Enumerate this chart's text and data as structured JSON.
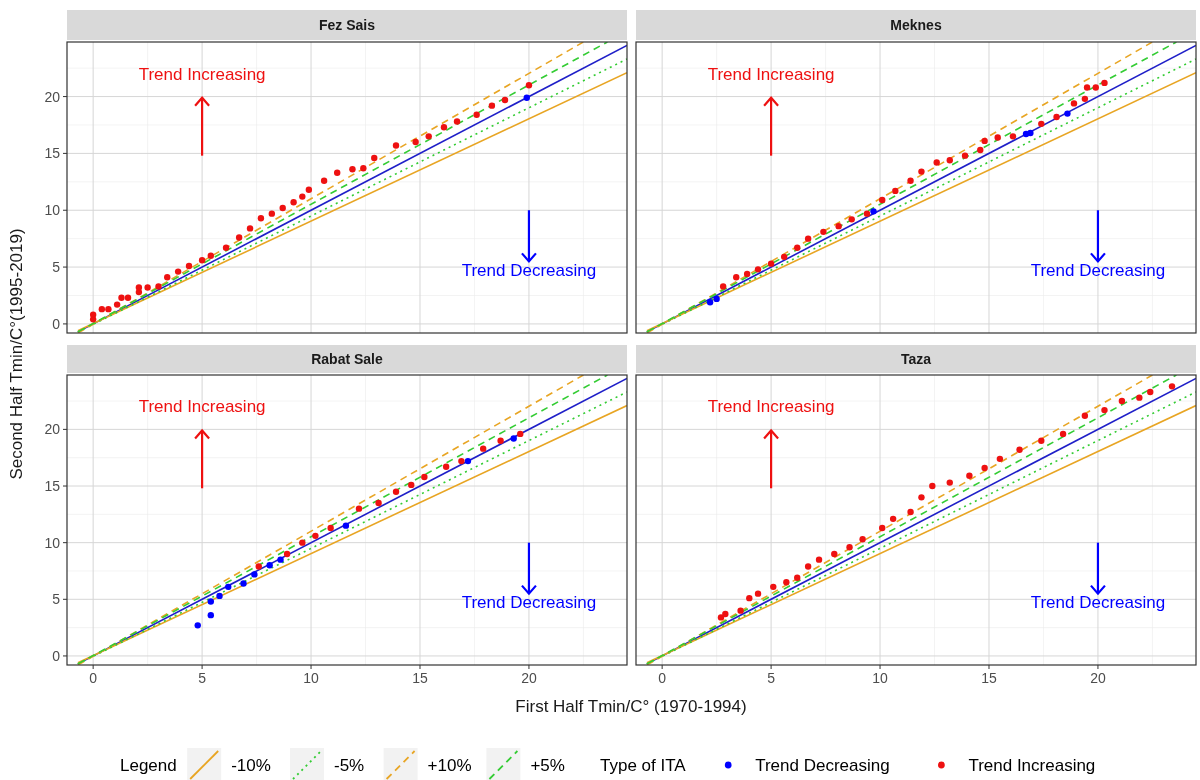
{
  "chart_data": [
    {
      "type": "scatter",
      "title": "Fez Sais",
      "xlabel": "First Half Tmin/C° (1970-1994)",
      "ylabel": "Second Half Tmin/C°(1995-2019)",
      "legend_title": "Legend",
      "legend": "bottom",
      "grid": true,
      "tick_labels": "y",
      "xlim": [
        -1.2,
        24.5
      ],
      "ylim": [
        -0.8,
        24.8
      ],
      "xticks": [
        0,
        5,
        10,
        15,
        20
      ],
      "yticks": [
        0,
        5,
        10,
        15,
        20
      ],
      "annotations": [
        "Trend Increasing",
        "Trend Decreasing",
        "Type of ITA"
      ],
      "series": [
        {
          "type": "line",
          "color": "#1f1fc8",
          "line_style": "solid",
          "x": [
            -0.7,
            24.5
          ],
          "values": [
            -0.7,
            24.5
          ]
        },
        {
          "type": "line",
          "name": "-10%",
          "color": "#e8a523",
          "line_style": "solid",
          "x": [
            -0.7,
            24.5
          ],
          "values": [
            -0.6,
            22.1
          ]
        },
        {
          "type": "line",
          "name": "-5%",
          "color": "#33cc33",
          "line_style": "dotted",
          "x": [
            -0.7,
            24.5
          ],
          "values": [
            -0.7,
            23.3
          ]
        },
        {
          "type": "line",
          "name": "+10%",
          "color": "#e8a523",
          "line_style": "dashed",
          "x": [
            -0.7,
            22.5
          ],
          "values": [
            -0.8,
            24.8
          ]
        },
        {
          "type": "line",
          "name": "+5%",
          "color": "#33cc33",
          "line_style": "dashed",
          "x": [
            -0.7,
            23.6
          ],
          "values": [
            -0.7,
            24.8
          ]
        },
        {
          "type": "scatter",
          "name": "Trend Decreasing",
          "color": "#0000ff",
          "marker": "circle",
          "x": [
            19.9
          ],
          "values": [
            19.9
          ]
        },
        {
          "type": "scatter",
          "name": "Trend Increasing",
          "color": "#ee1111",
          "marker": "circle",
          "x": [
            0,
            0,
            0.4,
            0.7,
            1.1,
            1.3,
            1.6,
            2.1,
            2.1,
            2.5,
            3.0,
            3.4,
            3.9,
            4.4,
            5.0,
            5.4,
            6.1,
            6.7,
            7.2,
            7.7,
            8.2,
            8.7,
            9.2,
            9.6,
            9.9,
            10.6,
            11.2,
            11.9,
            12.4,
            12.9,
            13.9,
            14.8,
            15.4,
            16.1,
            16.7,
            17.6,
            18.3,
            18.9,
            20.0
          ],
          "values": [
            0.4,
            0.8,
            1.3,
            1.3,
            1.7,
            2.3,
            2.3,
            2.8,
            3.2,
            3.2,
            3.3,
            4.1,
            4.6,
            5.1,
            5.6,
            6.0,
            6.7,
            7.6,
            8.4,
            9.3,
            9.7,
            10.2,
            10.7,
            11.2,
            11.8,
            12.6,
            13.3,
            13.6,
            13.7,
            14.6,
            15.7,
            16.0,
            16.5,
            17.3,
            17.8,
            18.4,
            19.2,
            19.7,
            21.0
          ]
        }
      ]
    },
    {
      "type": "scatter",
      "title": "Meknes",
      "grid": true,
      "tick_labels": false,
      "xlim": [
        -1.2,
        24.5
      ],
      "ylim": [
        -0.8,
        24.8
      ],
      "xticks": [
        0,
        5,
        10,
        15,
        20
      ],
      "yticks": [
        0,
        5,
        10,
        15,
        20
      ],
      "annotations": [
        "Trend Increasing",
        "Trend Decreasing"
      ],
      "series": [
        {
          "type": "line",
          "color": "#1f1fc8",
          "line_style": "solid",
          "x": [
            -0.7,
            24.5
          ],
          "values": [
            -0.7,
            24.5
          ]
        },
        {
          "type": "line",
          "color": "#e8a523",
          "line_style": "solid",
          "x": [
            -0.7,
            24.5
          ],
          "values": [
            -0.6,
            22.1
          ]
        },
        {
          "type": "line",
          "color": "#33cc33",
          "line_style": "dotted",
          "x": [
            -0.7,
            24.5
          ],
          "values": [
            -0.7,
            23.3
          ]
        },
        {
          "type": "line",
          "color": "#e8a523",
          "line_style": "dashed",
          "x": [
            -0.7,
            22.5
          ],
          "values": [
            -0.8,
            24.8
          ]
        },
        {
          "type": "line",
          "color": "#33cc33",
          "line_style": "dashed",
          "x": [
            -0.7,
            23.6
          ],
          "values": [
            -0.7,
            24.8
          ]
        },
        {
          "type": "scatter",
          "color": "#0000ff",
          "marker": "circle",
          "x": [
            2.2,
            2.5,
            9.7,
            16.7,
            16.9,
            18.6
          ],
          "values": [
            1.9,
            2.2,
            9.9,
            16.7,
            16.8,
            18.5
          ]
        },
        {
          "type": "scatter",
          "color": "#ee1111",
          "marker": "circle",
          "x": [
            2.8,
            3.4,
            3.9,
            4.4,
            5.0,
            5.6,
            6.2,
            6.7,
            7.4,
            8.1,
            8.7,
            9.4,
            10.1,
            10.7,
            11.4,
            11.9,
            12.6,
            13.2,
            13.9,
            14.6,
            14.8,
            15.4,
            16.1,
            17.4,
            18.1,
            18.9,
            19.4,
            19.5,
            19.9,
            20.3
          ],
          "values": [
            3.3,
            4.1,
            4.4,
            4.8,
            5.3,
            5.9,
            6.7,
            7.5,
            8.1,
            8.6,
            9.2,
            9.7,
            10.9,
            11.7,
            12.6,
            13.4,
            14.2,
            14.4,
            14.8,
            15.3,
            16.1,
            16.4,
            16.5,
            17.6,
            18.2,
            19.4,
            19.8,
            20.8,
            20.8,
            21.2
          ]
        }
      ]
    },
    {
      "type": "scatter",
      "title": "Rabat Sale",
      "grid": true,
      "xlim": [
        -1.2,
        24.5
      ],
      "ylim": [
        -0.8,
        24.8
      ],
      "xticks": [
        0,
        5,
        10,
        15,
        20
      ],
      "yticks": [
        0,
        5,
        10,
        15,
        20
      ],
      "annotations": [
        "Trend Increasing",
        "Trend Decreasing"
      ],
      "series": [
        {
          "type": "line",
          "color": "#1f1fc8",
          "line_style": "solid",
          "x": [
            -0.7,
            24.5
          ],
          "values": [
            -0.7,
            24.5
          ]
        },
        {
          "type": "line",
          "color": "#e8a523",
          "line_style": "solid",
          "x": [
            -0.7,
            24.5
          ],
          "values": [
            -0.6,
            22.1
          ]
        },
        {
          "type": "line",
          "color": "#33cc33",
          "line_style": "dotted",
          "x": [
            -0.7,
            24.5
          ],
          "values": [
            -0.7,
            23.3
          ]
        },
        {
          "type": "line",
          "color": "#e8a523",
          "line_style": "dashed",
          "x": [
            -0.7,
            22.5
          ],
          "values": [
            -0.8,
            24.8
          ]
        },
        {
          "type": "line",
          "color": "#33cc33",
          "line_style": "dashed",
          "x": [
            -0.7,
            23.6
          ],
          "values": [
            -0.7,
            24.8
          ]
        },
        {
          "type": "scatter",
          "color": "#0000ff",
          "marker": "circle",
          "x": [
            4.8,
            5.4,
            5.4,
            5.8,
            6.2,
            6.9,
            7.4,
            8.1,
            8.6,
            11.6,
            17.2,
            19.3
          ],
          "values": [
            2.7,
            3.6,
            4.8,
            5.3,
            6.1,
            6.4,
            7.2,
            8.0,
            8.5,
            11.5,
            17.2,
            19.2
          ]
        },
        {
          "type": "scatter",
          "color": "#ee1111",
          "marker": "circle",
          "x": [
            7.6,
            8.9,
            9.6,
            10.2,
            10.9,
            12.2,
            13.1,
            13.9,
            14.6,
            15.2,
            16.2,
            16.9,
            17.9,
            18.7,
            19.6
          ],
          "values": [
            7.9,
            9.0,
            10.0,
            10.6,
            11.3,
            13.0,
            13.5,
            14.5,
            15.1,
            15.8,
            16.7,
            17.2,
            18.3,
            19.0,
            19.6
          ]
        }
      ]
    },
    {
      "type": "scatter",
      "title": "Taza",
      "grid": true,
      "tick_labels": "x",
      "xlim": [
        -1.2,
        24.5
      ],
      "ylim": [
        -0.8,
        24.8
      ],
      "xticks": [
        0,
        5,
        10,
        15,
        20
      ],
      "yticks": [
        0,
        5,
        10,
        15,
        20
      ],
      "annotations": [
        "Trend Increasing",
        "Trend Decreasing"
      ],
      "series": [
        {
          "type": "line",
          "color": "#1f1fc8",
          "line_style": "solid",
          "x": [
            -0.7,
            24.5
          ],
          "values": [
            -0.7,
            24.5
          ]
        },
        {
          "type": "line",
          "color": "#e8a523",
          "line_style": "solid",
          "x": [
            -0.7,
            24.5
          ],
          "values": [
            -0.6,
            22.1
          ]
        },
        {
          "type": "line",
          "color": "#33cc33",
          "line_style": "dotted",
          "x": [
            -0.7,
            24.5
          ],
          "values": [
            -0.7,
            23.3
          ]
        },
        {
          "type": "line",
          "color": "#e8a523",
          "line_style": "dashed",
          "x": [
            -0.7,
            22.5
          ],
          "values": [
            -0.8,
            24.8
          ]
        },
        {
          "type": "line",
          "color": "#33cc33",
          "line_style": "dashed",
          "x": [
            -0.7,
            23.6
          ],
          "values": [
            -0.7,
            24.8
          ]
        },
        {
          "type": "scatter",
          "color": "#ee1111",
          "marker": "circle",
          "x": [
            2.7,
            2.9,
            3.6,
            4.0,
            4.4,
            5.1,
            5.7,
            6.2,
            6.7,
            7.2,
            7.9,
            8.6,
            9.2,
            10.1,
            10.6,
            11.4,
            11.9,
            12.4,
            13.2,
            14.1,
            14.8,
            15.5,
            16.4,
            17.4,
            18.4,
            19.4,
            20.3,
            21.1,
            21.9,
            22.4,
            23.4
          ],
          "values": [
            3.4,
            3.7,
            4.0,
            5.1,
            5.5,
            6.1,
            6.5,
            6.9,
            7.9,
            8.5,
            9.0,
            9.6,
            10.3,
            11.3,
            12.1,
            12.7,
            14.0,
            15.0,
            15.3,
            15.9,
            16.6,
            17.4,
            18.2,
            19.0,
            19.6,
            21.2,
            21.7,
            22.5,
            22.8,
            23.3,
            23.8
          ]
        }
      ]
    }
  ]
}
